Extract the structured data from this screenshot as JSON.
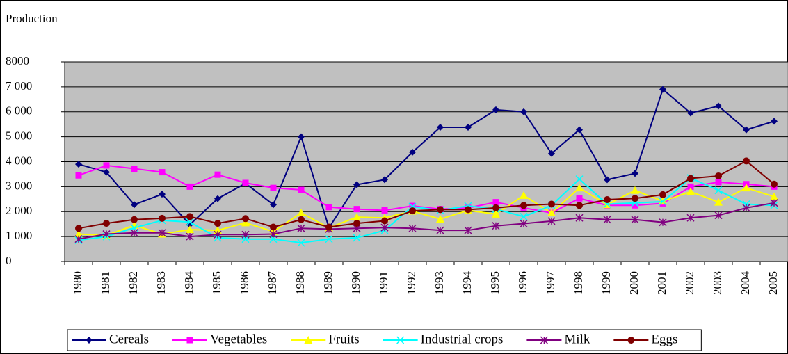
{
  "chart_data": {
    "type": "line",
    "y_label": "Production",
    "categories": [
      "1980",
      "1981",
      "1982",
      "1983",
      "1984",
      "1985",
      "1986",
      "1987",
      "1988",
      "1989",
      "1990",
      "1991",
      "1992",
      "1993",
      "1994",
      "1995",
      "1996",
      "1997",
      "1998",
      "1999",
      "2000",
      "2001",
      "2002",
      "2003",
      "2004",
      "2005"
    ],
    "ylim": [
      0,
      8000
    ],
    "yticks": [
      0,
      {
        "value": 1000,
        "label": "1 000"
      },
      {
        "value": 2000,
        "label": "2 000"
      },
      {
        "value": 3000,
        "label": "3 000"
      },
      {
        "value": 4000,
        "label": "4 000"
      },
      {
        "value": 5000,
        "label": "5 000"
      },
      {
        "value": 6000,
        "label": "6 000"
      },
      {
        "value": 7000,
        "label": "7 000"
      },
      8000
    ],
    "grid": true,
    "plot_background": "#c0c0c0",
    "legend": "bottom",
    "series": [
      {
        "name": "Cereals",
        "color": "#000080",
        "marker": "diamond",
        "values": [
          3900,
          3580,
          2280,
          2700,
          1480,
          2520,
          3130,
          2280,
          5000,
          1350,
          3080,
          3280,
          4380,
          5380,
          5380,
          6080,
          6000,
          4330,
          5280,
          3280,
          3530,
          6900,
          5950,
          6230,
          5280,
          5620
        ]
      },
      {
        "name": "Vegetables",
        "color": "#ff00ff",
        "marker": "square",
        "values": [
          3450,
          3850,
          3720,
          3580,
          3000,
          3480,
          3150,
          2950,
          2870,
          2180,
          2100,
          2050,
          2230,
          2100,
          2150,
          2380,
          2150,
          1950,
          2530,
          2250,
          2250,
          2330,
          3000,
          3180,
          3100,
          3000
        ]
      },
      {
        "name": "Fruits",
        "color": "#ffff00",
        "marker": "triangle",
        "values": [
          1100,
          1050,
          1450,
          1100,
          1280,
          1250,
          1550,
          1200,
          1950,
          1350,
          1780,
          1750,
          2020,
          1700,
          2050,
          1900,
          2650,
          1950,
          2950,
          2280,
          2850,
          2420,
          2800,
          2380,
          2950,
          2600
        ]
      },
      {
        "name": "Industrial crops",
        "color": "#00ffff",
        "marker": "x",
        "values": [
          850,
          1000,
          1350,
          1650,
          1580,
          950,
          900,
          900,
          750,
          900,
          950,
          1250,
          2200,
          2050,
          2230,
          2100,
          1800,
          2250,
          3300,
          2300,
          2350,
          2400,
          3350,
          2850,
          2300,
          2250
        ]
      },
      {
        "name": "Milk",
        "color": "#800080",
        "marker": "star",
        "values": [
          900,
          1100,
          1150,
          1150,
          1000,
          1080,
          1080,
          1100,
          1330,
          1300,
          1330,
          1360,
          1330,
          1250,
          1250,
          1430,
          1520,
          1620,
          1750,
          1680,
          1680,
          1570,
          1750,
          1850,
          2150,
          2350
        ]
      },
      {
        "name": "Eggs",
        "color": "#800000",
        "marker": "circle",
        "values": [
          1330,
          1530,
          1680,
          1730,
          1800,
          1530,
          1720,
          1380,
          1680,
          1380,
          1530,
          1630,
          2030,
          2080,
          2080,
          2150,
          2250,
          2300,
          2250,
          2480,
          2530,
          2680,
          3330,
          3430,
          4030,
          3100
        ]
      }
    ]
  }
}
